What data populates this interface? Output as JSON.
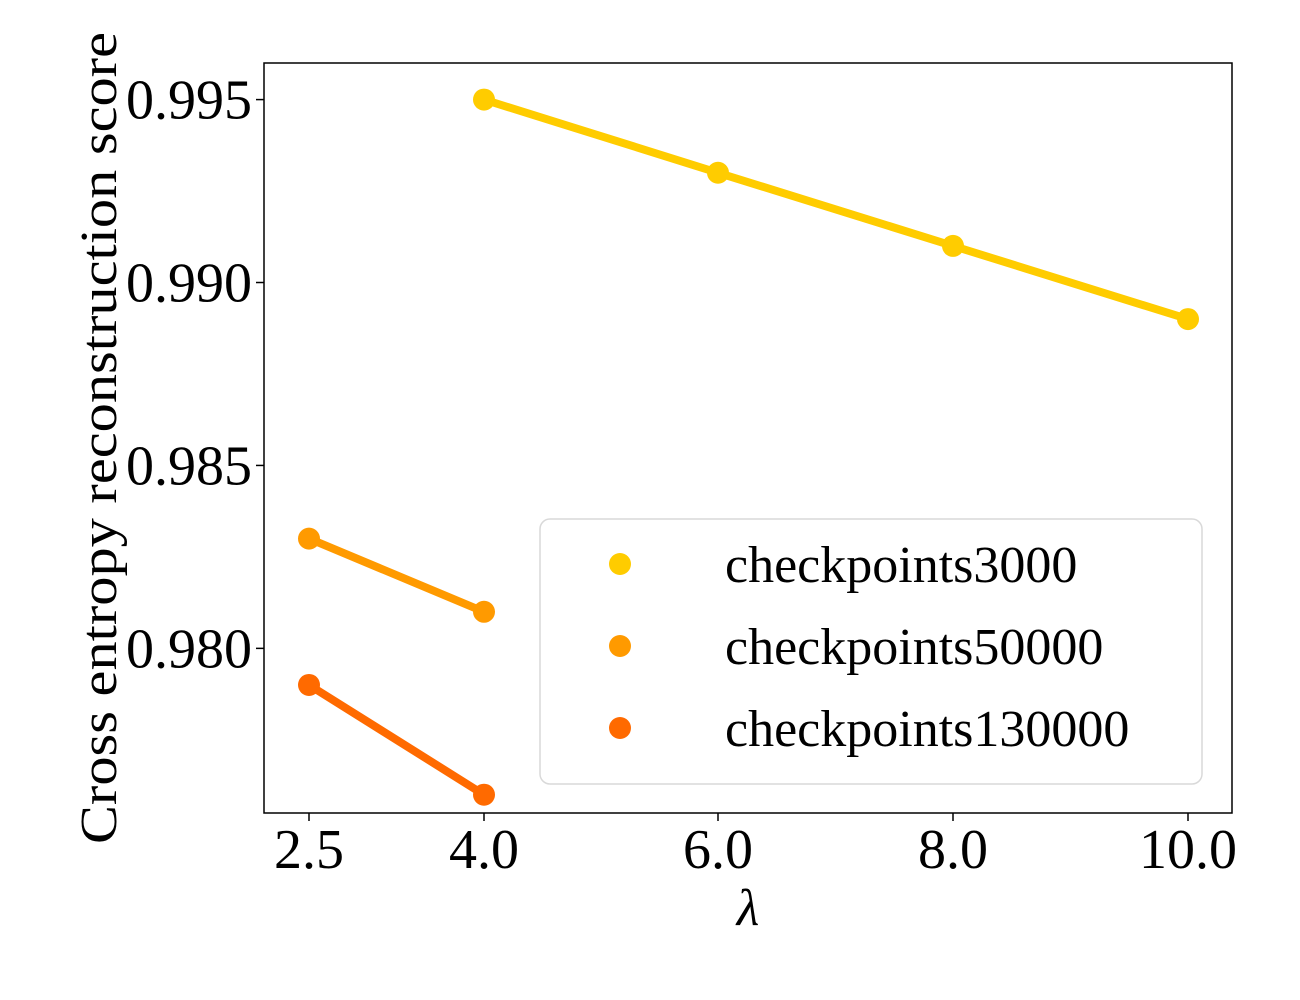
{
  "chart_data": {
    "type": "line",
    "title": "",
    "xlabel": "λ",
    "ylabel": "Cross entropy reconstruction score",
    "x_ticks": [
      "2.5",
      "4.0",
      "6.0",
      "8.0",
      "10.0"
    ],
    "y_ticks": [
      "0.980",
      "0.985",
      "0.990",
      "0.995"
    ],
    "x_categories": [
      2.5,
      4.0,
      6.0,
      8.0,
      10.0
    ],
    "ylim": [
      0.9755,
      0.996
    ],
    "grid": false,
    "legend_position": "lower-right",
    "series": [
      {
        "name": "checkpoints3000",
        "color": "#FFCC00",
        "x": [
          4.0,
          6.0,
          8.0,
          10.0
        ],
        "y": [
          0.995,
          0.993,
          0.991,
          0.989
        ]
      },
      {
        "name": "checkpoints50000",
        "color": "#FF9A00",
        "x": [
          2.5,
          4.0
        ],
        "y": [
          0.983,
          0.981
        ]
      },
      {
        "name": "checkpoints130000",
        "color": "#FF6A00",
        "x": [
          2.5,
          4.0
        ],
        "y": [
          0.979,
          0.976
        ]
      }
    ]
  }
}
